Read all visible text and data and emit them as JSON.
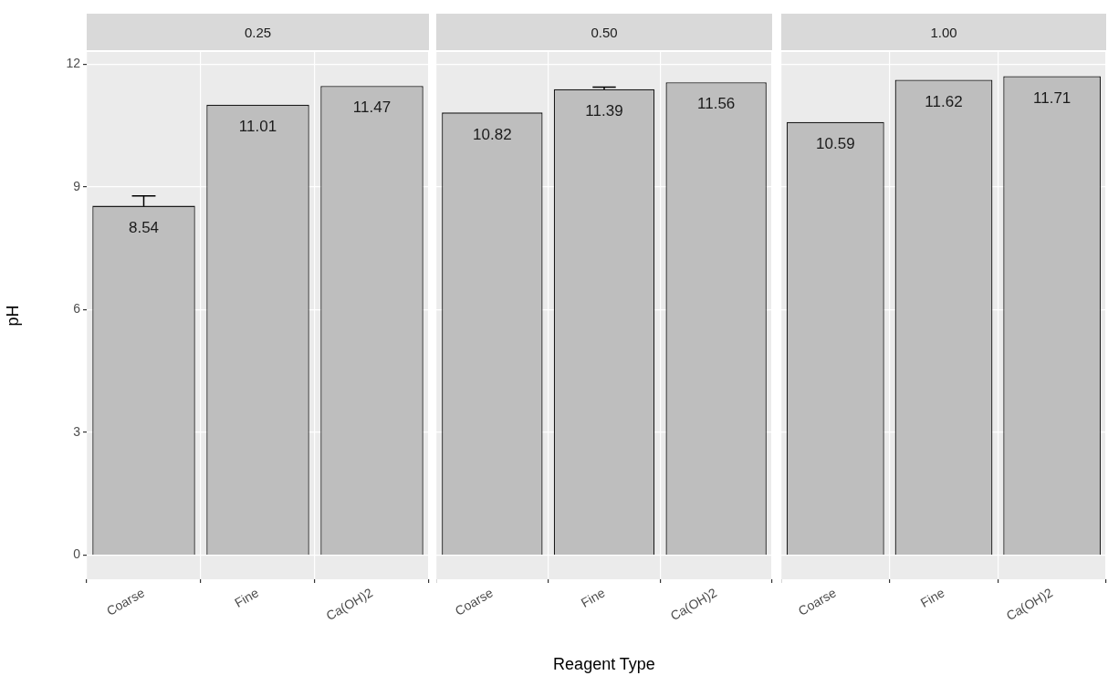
{
  "chart_data": [
    {
      "type": "bar",
      "title": "0.25",
      "ylabel": "pH",
      "categories": [
        "Coarse",
        "Fine",
        "Ca(OH)2"
      ],
      "values": [
        8.54,
        11.01,
        11.47
      ],
      "errors": [
        0.24,
        null,
        null
      ],
      "color": "#bebebe",
      "ylim": [
        -0.59,
        12.3
      ],
      "yticks": [
        0,
        3,
        6,
        9,
        12
      ],
      "grid": true,
      "data_labels": true
    },
    {
      "type": "bar",
      "title": "0.50",
      "xlabel": "Reagent Type",
      "categories": [
        "Coarse",
        "Fine",
        "Ca(OH)2"
      ],
      "values": [
        10.82,
        11.39,
        11.56
      ],
      "errors": [
        null,
        0.05,
        null
      ],
      "color": "#bebebe",
      "ylim": [
        -0.59,
        12.3
      ],
      "yticks": [
        0,
        3,
        6,
        9,
        12
      ],
      "grid": true,
      "data_labels": true,
      "tick_labels": "x"
    },
    {
      "type": "bar",
      "title": "1.00",
      "categories": [
        "Coarse",
        "Fine",
        "Ca(OH)2"
      ],
      "values": [
        10.59,
        11.62,
        11.71
      ],
      "color": "#bebebe",
      "ylim": [
        -0.59,
        12.3
      ],
      "yticks": [
        0,
        3,
        6,
        9,
        12
      ],
      "grid": true,
      "data_labels": true,
      "tick_labels": "x"
    }
  ]
}
